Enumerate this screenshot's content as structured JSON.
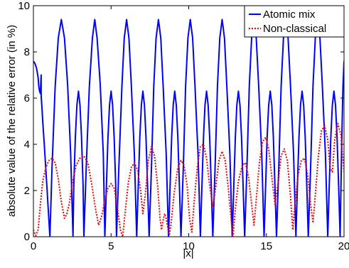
{
  "chart_data": {
    "type": "line",
    "xlabel": "|x|",
    "ylabel": "absolute value of the relative error (in %)",
    "xlim": [
      0,
      20
    ],
    "ylim": [
      0,
      10
    ],
    "xticks": [
      "0",
      "5",
      "10",
      "15",
      "20"
    ],
    "yticks": [
      "0",
      "2",
      "4",
      "6",
      "8",
      "10"
    ],
    "legend_position": "top-right",
    "series": [
      {
        "name": "Atomic mix",
        "color": "#0000ff",
        "style": "solid",
        "points": [
          [
            0.0,
            7.6
          ],
          [
            0.1,
            7.5
          ],
          [
            0.2,
            7.3
          ],
          [
            0.3,
            6.9
          ],
          [
            0.35,
            6.5
          ],
          [
            0.4,
            6.3
          ],
          [
            0.45,
            6.2
          ],
          [
            0.5,
            7.0
          ],
          [
            0.5,
            6.1
          ],
          [
            0.55,
            5.6
          ],
          [
            0.6,
            5.0
          ],
          [
            0.7,
            4.0
          ],
          [
            0.8,
            2.9
          ],
          [
            0.9,
            1.8
          ],
          [
            1.0,
            0.7
          ],
          [
            1.06,
            0
          ],
          [
            1.2,
            3.0
          ],
          [
            1.4,
            6.5
          ],
          [
            1.6,
            8.6
          ],
          [
            1.8,
            9.4
          ],
          [
            2.0,
            8.6
          ],
          [
            2.2,
            6.6
          ],
          [
            2.4,
            3.6
          ],
          [
            2.55,
            0
          ],
          [
            2.6,
            2.2
          ],
          [
            2.7,
            4.3
          ],
          [
            2.8,
            5.7
          ],
          [
            2.9,
            6.3
          ],
          [
            3.0,
            5.7
          ],
          [
            3.1,
            4.3
          ],
          [
            3.2,
            2.2
          ],
          [
            3.25,
            0
          ],
          [
            3.4,
            3.0
          ],
          [
            3.6,
            6.5
          ],
          [
            3.8,
            8.6
          ],
          [
            3.95,
            9.4
          ],
          [
            4.1,
            8.6
          ],
          [
            4.3,
            6.6
          ],
          [
            4.5,
            3.6
          ],
          [
            4.6,
            0
          ],
          [
            4.7,
            2.2
          ],
          [
            4.8,
            4.3
          ],
          [
            4.9,
            5.7
          ],
          [
            5.0,
            6.3
          ],
          [
            5.1,
            5.7
          ],
          [
            5.2,
            4.3
          ],
          [
            5.3,
            2.2
          ],
          [
            5.35,
            0
          ],
          [
            5.5,
            3.0
          ],
          [
            5.7,
            6.5
          ],
          [
            5.85,
            8.6
          ],
          [
            6.0,
            9.4
          ],
          [
            6.15,
            8.6
          ],
          [
            6.3,
            6.6
          ],
          [
            6.5,
            3.6
          ],
          [
            6.65,
            0
          ],
          [
            6.75,
            2.2
          ],
          [
            6.85,
            4.3
          ],
          [
            6.95,
            5.7
          ],
          [
            7.05,
            6.3
          ],
          [
            7.15,
            5.7
          ],
          [
            7.25,
            4.3
          ],
          [
            7.35,
            2.2
          ],
          [
            7.45,
            0
          ],
          [
            7.6,
            3.0
          ],
          [
            7.75,
            6.5
          ],
          [
            7.9,
            8.6
          ],
          [
            8.05,
            9.4
          ],
          [
            8.2,
            8.6
          ],
          [
            8.35,
            6.6
          ],
          [
            8.55,
            3.6
          ],
          [
            8.7,
            0
          ],
          [
            8.8,
            2.2
          ],
          [
            8.9,
            4.3
          ],
          [
            9.0,
            5.7
          ],
          [
            9.1,
            6.3
          ],
          [
            9.2,
            5.7
          ],
          [
            9.3,
            4.3
          ],
          [
            9.4,
            2.2
          ],
          [
            9.5,
            0
          ],
          [
            9.65,
            3.0
          ],
          [
            9.8,
            6.5
          ],
          [
            9.95,
            8.6
          ],
          [
            10.1,
            9.4
          ],
          [
            10.25,
            8.6
          ],
          [
            10.4,
            6.6
          ],
          [
            10.6,
            3.6
          ],
          [
            10.75,
            0
          ],
          [
            10.85,
            2.2
          ],
          [
            10.95,
            4.3
          ],
          [
            11.05,
            5.7
          ],
          [
            11.15,
            6.3
          ],
          [
            11.25,
            5.7
          ],
          [
            11.35,
            4.3
          ],
          [
            11.45,
            2.2
          ],
          [
            11.55,
            0
          ],
          [
            11.7,
            3.0
          ],
          [
            11.85,
            6.5
          ],
          [
            12.0,
            8.6
          ],
          [
            12.15,
            9.4
          ],
          [
            12.3,
            8.6
          ],
          [
            12.45,
            6.6
          ],
          [
            12.65,
            3.6
          ],
          [
            12.8,
            0
          ],
          [
            12.9,
            2.2
          ],
          [
            13.0,
            4.3
          ],
          [
            13.1,
            5.7
          ],
          [
            13.2,
            6.3
          ],
          [
            13.3,
            5.7
          ],
          [
            13.4,
            4.3
          ],
          [
            13.5,
            2.2
          ],
          [
            13.6,
            0
          ],
          [
            13.75,
            3.0
          ],
          [
            13.9,
            6.5
          ],
          [
            14.05,
            8.6
          ],
          [
            14.2,
            9.4
          ],
          [
            14.35,
            8.6
          ],
          [
            14.5,
            6.6
          ],
          [
            14.7,
            3.6
          ],
          [
            14.85,
            0
          ],
          [
            14.95,
            2.2
          ],
          [
            15.05,
            4.3
          ],
          [
            15.15,
            5.7
          ],
          [
            15.25,
            6.3
          ],
          [
            15.35,
            5.7
          ],
          [
            15.45,
            4.3
          ],
          [
            15.55,
            2.2
          ],
          [
            15.65,
            0
          ],
          [
            15.8,
            3.0
          ],
          [
            15.95,
            6.5
          ],
          [
            16.1,
            8.6
          ],
          [
            16.25,
            9.4
          ],
          [
            16.4,
            8.6
          ],
          [
            16.55,
            6.6
          ],
          [
            16.75,
            3.6
          ],
          [
            16.9,
            0
          ],
          [
            17.0,
            2.2
          ],
          [
            17.1,
            4.3
          ],
          [
            17.2,
            5.7
          ],
          [
            17.3,
            6.3
          ],
          [
            17.4,
            5.7
          ],
          [
            17.5,
            4.3
          ],
          [
            17.6,
            2.2
          ],
          [
            17.7,
            0
          ],
          [
            17.85,
            3.0
          ],
          [
            18.0,
            6.5
          ],
          [
            18.15,
            8.6
          ],
          [
            18.3,
            9.4
          ],
          [
            18.45,
            8.6
          ],
          [
            18.6,
            6.6
          ],
          [
            18.8,
            3.6
          ],
          [
            18.95,
            0
          ],
          [
            19.05,
            2.2
          ],
          [
            19.15,
            4.3
          ],
          [
            19.25,
            5.7
          ],
          [
            19.35,
            6.3
          ],
          [
            19.45,
            5.7
          ],
          [
            19.55,
            4.3
          ],
          [
            19.65,
            2.2
          ],
          [
            19.75,
            0
          ],
          [
            19.85,
            4.0
          ],
          [
            19.93,
            6.5
          ],
          [
            20.0,
            7.6
          ]
        ]
      },
      {
        "name": "Non-classical",
        "color": "#ff0000",
        "style": "dotted",
        "points": [
          [
            0.0,
            0.3
          ],
          [
            0.15,
            0.05
          ],
          [
            0.3,
            0.3
          ],
          [
            0.45,
            1.4
          ],
          [
            0.6,
            2.4
          ],
          [
            0.8,
            3.0
          ],
          [
            1.0,
            3.3
          ],
          [
            1.2,
            3.4
          ],
          [
            1.4,
            3.2
          ],
          [
            1.6,
            2.5
          ],
          [
            1.8,
            1.5
          ],
          [
            2.0,
            0.8
          ],
          [
            2.15,
            1.0
          ],
          [
            2.3,
            1.4
          ],
          [
            2.5,
            2.3
          ],
          [
            2.75,
            3.1
          ],
          [
            3.0,
            3.4
          ],
          [
            3.25,
            3.5
          ],
          [
            3.5,
            3.2
          ],
          [
            3.75,
            2.3
          ],
          [
            4.0,
            1.2
          ],
          [
            4.2,
            0.5
          ],
          [
            4.4,
            0.9
          ],
          [
            4.6,
            1.6
          ],
          [
            4.8,
            2.1
          ],
          [
            5.0,
            2.3
          ],
          [
            5.2,
            2.1
          ],
          [
            5.4,
            1.3
          ],
          [
            5.6,
            0.3
          ],
          [
            5.75,
            0.0
          ],
          [
            5.9,
            1.0
          ],
          [
            6.1,
            2.3
          ],
          [
            6.3,
            3.0
          ],
          [
            6.5,
            3.2
          ],
          [
            6.7,
            2.9
          ],
          [
            6.9,
            2.0
          ],
          [
            7.05,
            1.0
          ],
          [
            7.2,
            1.8
          ],
          [
            7.4,
            3.3
          ],
          [
            7.6,
            3.9
          ],
          [
            7.8,
            3.5
          ],
          [
            8.0,
            2.2
          ],
          [
            8.15,
            0.8
          ],
          [
            8.25,
            0.3
          ],
          [
            8.35,
            0.7
          ],
          [
            8.45,
            1.0
          ],
          [
            8.55,
            0.8
          ],
          [
            8.65,
            0.4
          ],
          [
            8.75,
            0.1
          ],
          [
            8.85,
            0.5
          ],
          [
            9.05,
            1.8
          ],
          [
            9.3,
            3.0
          ],
          [
            9.5,
            3.3
          ],
          [
            9.7,
            3.1
          ],
          [
            9.9,
            2.2
          ],
          [
            10.05,
            0.8
          ],
          [
            10.2,
            0.2
          ],
          [
            10.35,
            1.5
          ],
          [
            10.55,
            3.0
          ],
          [
            10.75,
            3.9
          ],
          [
            10.95,
            4.0
          ],
          [
            11.15,
            3.4
          ],
          [
            11.35,
            2.2
          ],
          [
            11.55,
            1.3
          ],
          [
            11.75,
            2.2
          ],
          [
            11.95,
            3.3
          ],
          [
            12.15,
            3.7
          ],
          [
            12.35,
            3.3
          ],
          [
            12.55,
            2.1
          ],
          [
            12.75,
            0.6
          ],
          [
            12.85,
            0.0
          ],
          [
            13.0,
            1.2
          ],
          [
            13.2,
            2.4
          ],
          [
            13.45,
            3.1
          ],
          [
            13.65,
            3.2
          ],
          [
            13.85,
            2.6
          ],
          [
            14.05,
            1.4
          ],
          [
            14.2,
            0.5
          ],
          [
            14.35,
            1.6
          ],
          [
            14.55,
            3.2
          ],
          [
            14.75,
            4.1
          ],
          [
            14.95,
            4.3
          ],
          [
            15.15,
            3.8
          ],
          [
            15.35,
            2.6
          ],
          [
            15.55,
            1.4
          ],
          [
            15.75,
            2.3
          ],
          [
            15.95,
            3.5
          ],
          [
            16.15,
            3.8
          ],
          [
            16.35,
            3.3
          ],
          [
            16.55,
            1.8
          ],
          [
            16.7,
            0.3
          ],
          [
            16.85,
            1.5
          ],
          [
            17.05,
            2.7
          ],
          [
            17.25,
            3.3
          ],
          [
            17.45,
            3.4
          ],
          [
            17.65,
            2.7
          ],
          [
            17.85,
            1.4
          ],
          [
            18.0,
            0.6
          ],
          [
            18.15,
            1.8
          ],
          [
            18.35,
            3.5
          ],
          [
            18.55,
            4.6
          ],
          [
            18.75,
            4.8
          ],
          [
            18.95,
            4.2
          ],
          [
            19.1,
            3.0
          ],
          [
            19.25,
            2.8
          ],
          [
            19.4,
            4.2
          ],
          [
            19.6,
            4.9
          ],
          [
            19.8,
            4.4
          ],
          [
            19.95,
            3.2
          ],
          [
            20.0,
            2.8
          ]
        ]
      }
    ]
  }
}
